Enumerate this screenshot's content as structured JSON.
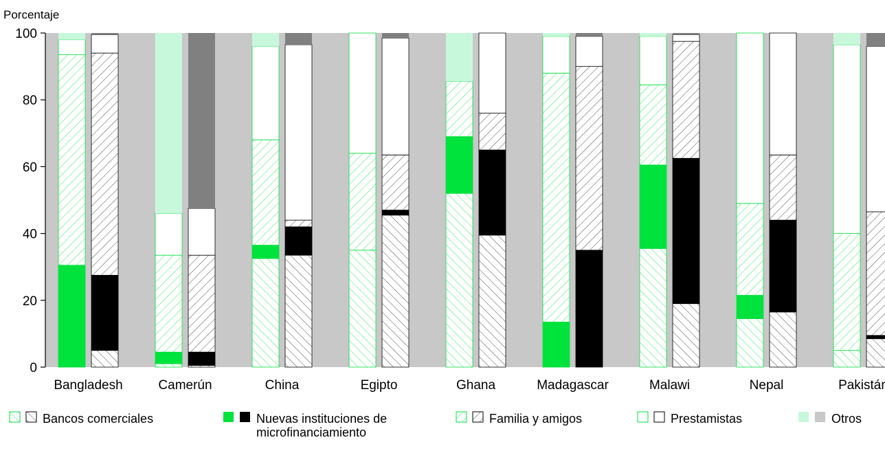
{
  "chart_data": {
    "type": "bar",
    "stacked": true,
    "grouped": true,
    "ylabel": "Porcentaje",
    "ylim": [
      0,
      100
    ],
    "yticks": [
      0,
      20,
      40,
      60,
      80,
      100
    ],
    "categories": [
      "Bangladesh",
      "Camerún",
      "China",
      "Egipto",
      "Ghana",
      "Madagascar",
      "Malawi",
      "Nepal",
      "Pakistán"
    ],
    "segment_order": [
      "Bancos comerciales",
      "Nuevas instituciones de microfinanciamiento",
      "Familia y amigos",
      "Prestamistas",
      "Otros"
    ],
    "groups": [
      {
        "country": "Bangladesh",
        "green": [
          0,
          30.5,
          63,
          4.5,
          2
        ],
        "black": [
          5,
          22.5,
          66.5,
          5.5,
          0.5
        ]
      },
      {
        "country": "Camerún",
        "green": [
          1,
          3.5,
          29,
          12.5,
          54
        ],
        "black": [
          0.5,
          4,
          29,
          14,
          52.5
        ]
      },
      {
        "country": "China",
        "green": [
          32.5,
          4,
          31.5,
          28,
          4
        ],
        "black": [
          33.5,
          8.5,
          2,
          52.5,
          3.5
        ]
      },
      {
        "country": "Egipto",
        "green": [
          35,
          0,
          29,
          36,
          0
        ],
        "black": [
          45.5,
          1.5,
          16.5,
          35,
          1.5
        ]
      },
      {
        "country": "Ghana",
        "green": [
          52,
          17,
          16.5,
          0,
          14.5
        ],
        "black": [
          39.5,
          25.5,
          11,
          24,
          0
        ]
      },
      {
        "country": "Madagascar",
        "green": [
          0,
          13.5,
          74.5,
          11,
          1
        ],
        "black": [
          0,
          35,
          55,
          9,
          1
        ]
      },
      {
        "country": "Malawi",
        "green": [
          35.5,
          25,
          24,
          14.5,
          1
        ],
        "black": [
          19,
          43.5,
          35,
          2,
          0.5
        ]
      },
      {
        "country": "Nepal",
        "green": [
          14.5,
          7,
          27.5,
          51,
          0
        ],
        "black": [
          16.5,
          27.5,
          19.5,
          36.5,
          0
        ]
      },
      {
        "country": "Pakistán",
        "green": [
          5,
          0,
          35,
          56.5,
          3.5
        ],
        "black": [
          8.5,
          1,
          37,
          49.5,
          4
        ]
      }
    ],
    "legend": [
      {
        "label": "Bancos comerciales",
        "swatch": "hatch-bank"
      },
      {
        "label_lines": [
          "Nuevas instituciones de",
          "microfinanciamiento"
        ],
        "swatch": "solid"
      },
      {
        "label": "Familia y amigos",
        "swatch": "hatch-family"
      },
      {
        "label": "Prestamistas",
        "swatch": "outline"
      },
      {
        "label": "Otros",
        "swatch": "light"
      }
    ],
    "legend_placement": "bottom",
    "colors": {
      "background": "#c8c8c8",
      "green_series": "#00e23c",
      "green_light": "#c8f8dc",
      "black_series": "#000000",
      "gray_other": "#808080"
    }
  }
}
